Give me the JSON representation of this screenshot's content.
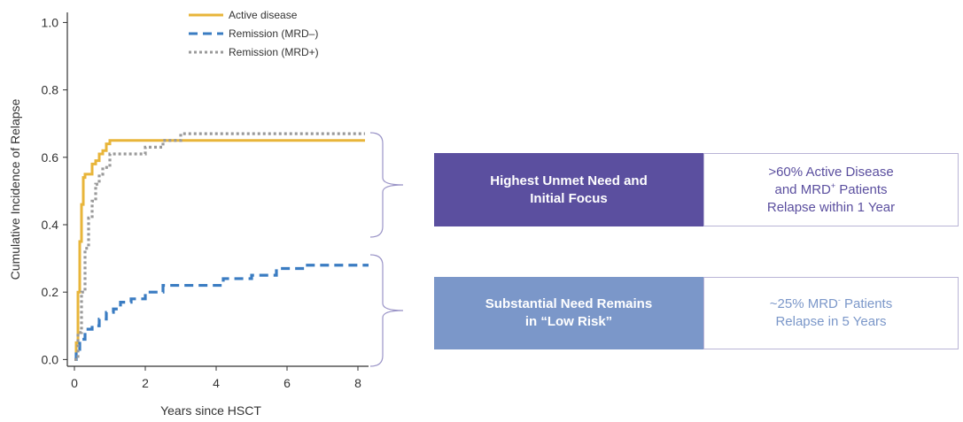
{
  "chart_data": {
    "type": "line",
    "xlabel": "Years since HSCT",
    "ylabel": "Cumulative Incidence of Relapse",
    "xlim": [
      -0.2,
      8.3
    ],
    "ylim": [
      -0.02,
      1.03
    ],
    "x_ticks": [
      0,
      2,
      4,
      6,
      8
    ],
    "x_tick_labels": [
      "0",
      "2",
      "4",
      "6",
      "8"
    ],
    "y_ticks": [
      0,
      0.2,
      0.4,
      0.6,
      0.8,
      1.0
    ],
    "y_tick_labels": [
      "0.0",
      "0.2",
      "0.4",
      "0.6",
      "0.8",
      "1.0"
    ],
    "legend_position": "top",
    "series": [
      {
        "name": "Active disease",
        "color": "#e8b53a",
        "style": "solid",
        "x": [
          0,
          0.05,
          0.1,
          0.15,
          0.2,
          0.25,
          0.3,
          0.4,
          0.5,
          0.6,
          0.7,
          0.8,
          0.9,
          1.0,
          8.2
        ],
        "y": [
          0,
          0.05,
          0.2,
          0.35,
          0.46,
          0.54,
          0.55,
          0.55,
          0.58,
          0.59,
          0.61,
          0.62,
          0.64,
          0.65,
          0.65
        ]
      },
      {
        "name": "Remission (MRD–)",
        "color": "#3a7cc2",
        "style": "dashed",
        "x": [
          0,
          0.05,
          0.15,
          0.3,
          0.5,
          0.7,
          0.9,
          1.1,
          1.3,
          1.6,
          2.0,
          2.5,
          3.0,
          4.0,
          4.2,
          5.0,
          5.7,
          6.5,
          8.3
        ],
        "y": [
          0,
          0.03,
          0.06,
          0.09,
          0.1,
          0.12,
          0.14,
          0.15,
          0.17,
          0.18,
          0.2,
          0.22,
          0.22,
          0.22,
          0.24,
          0.25,
          0.27,
          0.28,
          0.28
        ]
      },
      {
        "name": "Remission (MRD+)",
        "color": "#9a9a9a",
        "style": "dotted",
        "x": [
          0,
          0.1,
          0.2,
          0.3,
          0.4,
          0.5,
          0.6,
          0.7,
          0.8,
          1.0,
          2.0,
          2.5,
          3.0,
          8.2
        ],
        "y": [
          0,
          0.08,
          0.2,
          0.33,
          0.42,
          0.47,
          0.52,
          0.55,
          0.57,
          0.61,
          0.63,
          0.65,
          0.67,
          0.67
        ]
      }
    ]
  },
  "callouts": {
    "top": {
      "label": "Highest Unmet Need and Initial Focus",
      "detail_line1": ">60% Active Disease",
      "detail_line2_pre": "and MRD",
      "detail_line2_sup": "+",
      "detail_line2_post": " Patients",
      "detail_line3": "Relapse within 1 Year",
      "colors": {
        "fill": "#5b4f9f",
        "text": "#5b4f9f"
      }
    },
    "bottom": {
      "label": "Substantial Need Remains in “Low Risk”",
      "detail_line1_pre": "~25% MRD",
      "detail_line1_sup": "-",
      "detail_line1_post": " Patients",
      "detail_line2": "Relapse in 5 Years",
      "colors": {
        "fill": "#7b97c9",
        "text": "#7b97c9"
      }
    }
  }
}
